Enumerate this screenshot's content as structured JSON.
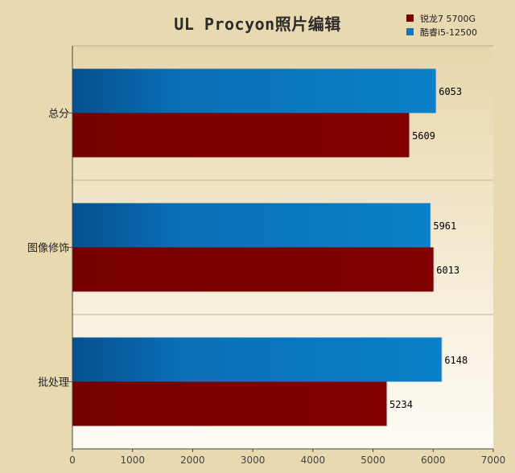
{
  "chart_data": {
    "type": "bar",
    "orientation": "horizontal",
    "title": "UL Procyon照片编辑",
    "categories": [
      "总分",
      "图像修饰",
      "批处理"
    ],
    "series": [
      {
        "name": "酷睿i5-12500",
        "color": "#0a78c2",
        "values": [
          6053,
          5961,
          6148
        ]
      },
      {
        "name": "锐龙7 5700G",
        "color": "#7d0000",
        "values": [
          5609,
          6013,
          5234
        ]
      }
    ],
    "legend_order": [
      1,
      0
    ],
    "xlim": [
      0,
      7000
    ],
    "xticks": [
      0,
      1000,
      2000,
      3000,
      4000,
      5000,
      6000,
      7000
    ],
    "legend_position": "top-right",
    "grid": false
  }
}
